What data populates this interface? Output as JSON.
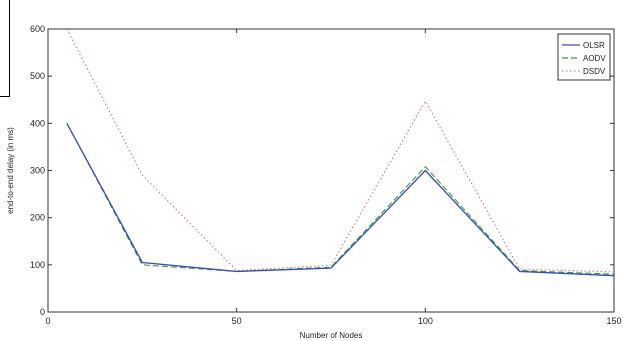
{
  "chart_data": {
    "type": "line",
    "title": "",
    "xlabel": "Number of Nodes",
    "ylabel": "end-to-end delay (in ms)",
    "xlim": [
      0,
      150
    ],
    "ylim": [
      0,
      600
    ],
    "xticks": [
      0,
      50,
      100,
      150
    ],
    "yticks": [
      0,
      100,
      200,
      300,
      400,
      500,
      600
    ],
    "grid": false,
    "legend_position": "top-right",
    "x": [
      5,
      25,
      50,
      75,
      100,
      125,
      150
    ],
    "series": [
      {
        "name": "OLSR",
        "values": [
          400,
          105,
          86,
          93,
          300,
          86,
          77
        ],
        "color": "#3b4fb0",
        "style": "solid"
      },
      {
        "name": "AODV",
        "values": [
          400,
          100,
          86,
          95,
          308,
          88,
          80
        ],
        "color": "#3a9a3a",
        "style": "dashed"
      },
      {
        "name": "DSDV",
        "values": [
          600,
          290,
          88,
          99,
          447,
          91,
          85
        ],
        "color": "#d07a7a",
        "style": "dotted"
      }
    ]
  },
  "page": {
    "ylabel_text": "end-to-end delay (in ms)",
    "xlabel_text": "Number of Nodes"
  }
}
